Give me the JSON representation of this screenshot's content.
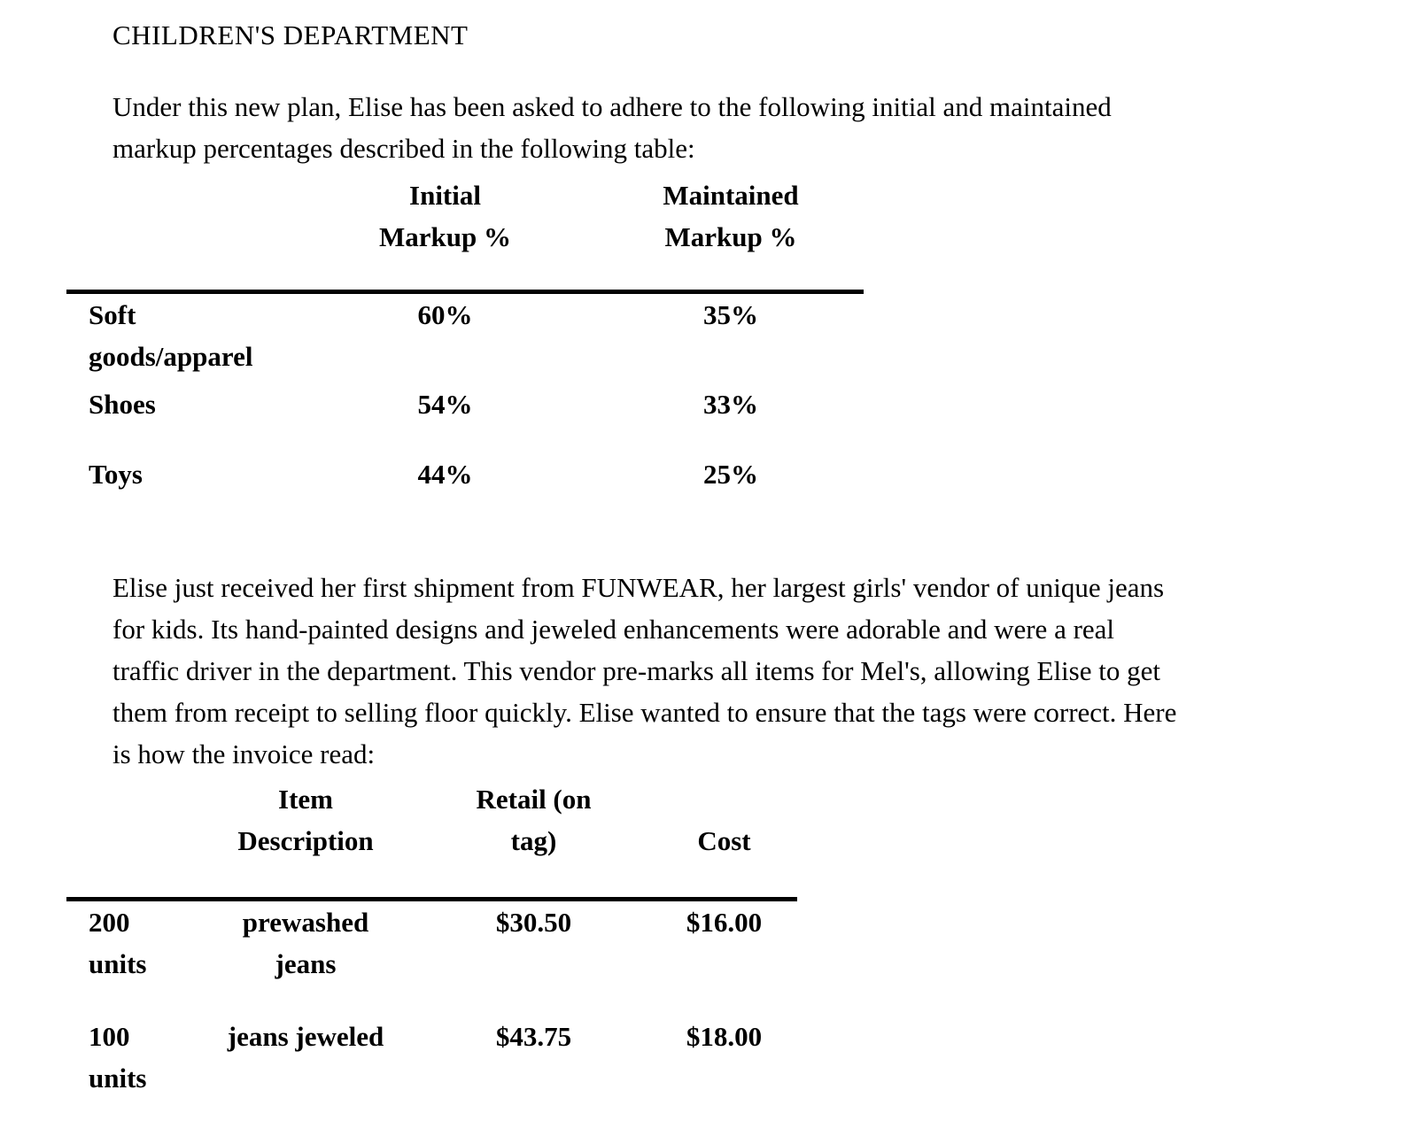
{
  "page": {
    "title": "CHILDREN'S DEPARTMENT",
    "intro_paragraph": "Under this new plan, Elise has been asked to adhere to the following initial and maintained\nmarkup percentages described in the following table:",
    "vendor_paragraph": "Elise just received her first shipment from FUNWEAR, her largest girls' vendor of unique jeans\nfor kids. Its hand-painted designs and jeweled enhancements were adorable and were a real\ntraffic driver in the department. This vendor pre-marks all items for Mel's, allowing Elise to get\nthem from receipt to selling floor quickly. Elise wanted to ensure that the tags were correct. Here\nis how the invoice read:"
  },
  "colors": {
    "text": "#000000",
    "background": "#ffffff",
    "rule": "#000000"
  },
  "markup_table": {
    "headers": {
      "category": "",
      "initial": "Initial\nMarkup %",
      "maintained": "Maintained\nMarkup %"
    },
    "rows": [
      {
        "category": "Soft goods/apparel",
        "initial": "60%",
        "maintained": "35%"
      },
      {
        "category": "Shoes",
        "initial": "54%",
        "maintained": "33%"
      },
      {
        "category": "Toys",
        "initial": "44%",
        "maintained": "25%"
      }
    ]
  },
  "invoice_table": {
    "headers": {
      "quantity": "",
      "description": "Item\nDescription",
      "retail": "Retail (on\ntag)",
      "cost": "Cost"
    },
    "rows": [
      {
        "quantity": "200 units",
        "description": "prewashed jeans",
        "retail": "$30.50",
        "cost": "$16.00"
      },
      {
        "quantity": "100 units",
        "description": "jeans jeweled",
        "retail": "$43.75",
        "cost": "$18.00"
      }
    ]
  }
}
